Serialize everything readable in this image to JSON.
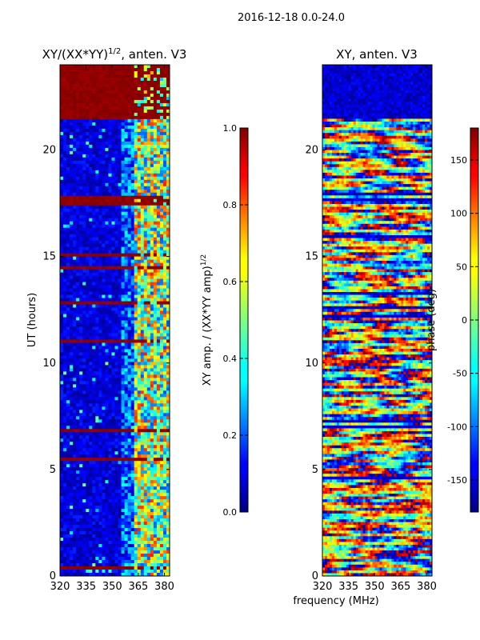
{
  "suptitle": "2016-12-18 0.0-24.0",
  "xlabel_shared": "frequency (MHz)",
  "chart_data": [
    {
      "type": "heatmap",
      "title_main": "XY/(XX*YY)",
      "title_sup": "1/2",
      "title_rest": ", anten. V3",
      "xlabel": "",
      "ylabel": "UT (hours)",
      "x_ticks": [
        320,
        335,
        350,
        365,
        380
      ],
      "y_ticks": [
        0,
        5,
        10,
        15,
        20
      ],
      "xlim": [
        320,
        383
      ],
      "ylim": [
        0,
        24
      ],
      "colormap": "jet",
      "description_values": "normalized XY amplitude, mostly low (~0.1-0.3) with high (~0.5-0.8) bands near 360-380 MHz and saturated rows",
      "colorbar": {
        "label_main": "XY amp. / (XX*YY amp)",
        "label_sup": "1/2",
        "ticks": [
          "0.0",
          "0.2",
          "0.4",
          "0.6",
          "0.8",
          "1.0"
        ],
        "range": [
          0,
          1
        ]
      }
    },
    {
      "type": "heatmap",
      "title": "XY, anten. V3",
      "xlabel": "frequency (MHz)",
      "ylabel": "",
      "x_ticks": [
        320,
        335,
        350,
        365,
        380
      ],
      "y_ticks": [
        0,
        5,
        10,
        15,
        20
      ],
      "xlim": [
        320,
        383
      ],
      "ylim": [
        0,
        24
      ],
      "colormap": "jet",
      "description_values": "XY phase in degrees, scattered across -180..180",
      "colorbar": {
        "label": "phase (deg)",
        "ticks": [
          "-150",
          "-100",
          "-50",
          "0",
          "50",
          "100",
          "150"
        ],
        "range": [
          -180,
          180
        ]
      }
    }
  ]
}
